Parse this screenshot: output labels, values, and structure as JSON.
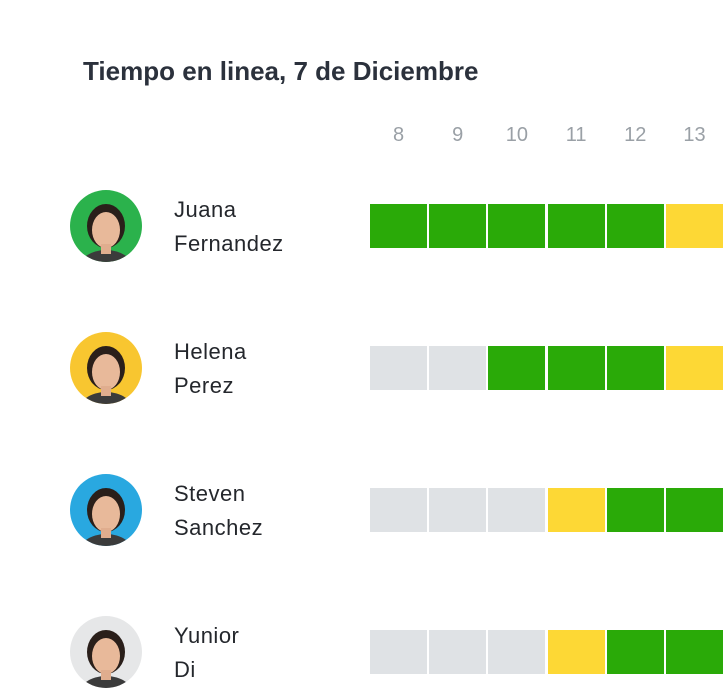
{
  "title": "Tiempo en linea, 7 de Diciembre",
  "hours": [
    "8",
    "9",
    "10",
    "11",
    "12",
    "13"
  ],
  "people": [
    {
      "name_lines": [
        "Juana",
        "Fernandez"
      ],
      "avatar_color": "#2bb24c",
      "cells": [
        "#2aaa08",
        "#2aaa08",
        "#2aaa08",
        "#2aaa08",
        "#2aaa08",
        "#fdd835"
      ]
    },
    {
      "name_lines": [
        "Helena",
        "Perez"
      ],
      "avatar_color": "#f8c630",
      "cells": [
        "#dfe2e5",
        "#dfe2e5",
        "#2aaa08",
        "#2aaa08",
        "#2aaa08",
        "#fdd835"
      ]
    },
    {
      "name_lines": [
        "Steven",
        "Sanchez"
      ],
      "avatar_color": "#29a8e0",
      "cells": [
        "#dfe2e5",
        "#dfe2e5",
        "#dfe2e5",
        "#fdd835",
        "#2aaa08",
        "#2aaa08"
      ]
    },
    {
      "name_lines": [
        "Yunior",
        "Di"
      ],
      "avatar_color": "#e6e7e8",
      "cells": [
        "#dfe2e5",
        "#dfe2e5",
        "#dfe2e5",
        "#fdd835",
        "#2aaa08",
        "#2aaa08"
      ]
    }
  ]
}
